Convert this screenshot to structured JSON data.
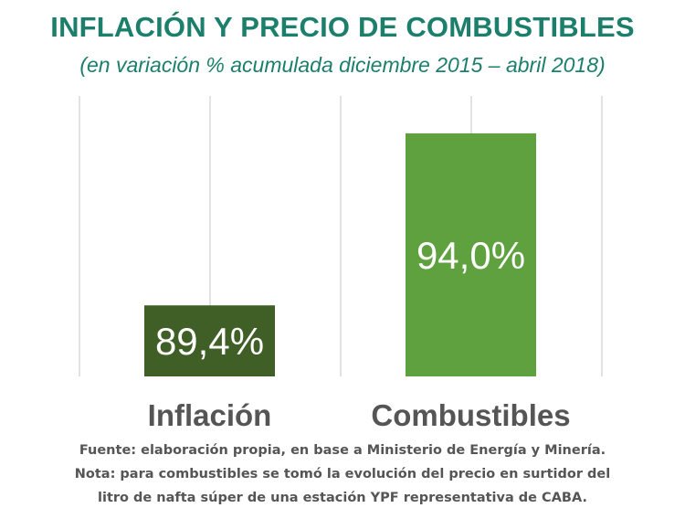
{
  "chart_data": {
    "type": "bar",
    "title": "INFLACIÓN Y PRECIO DE COMBUSTIBLES",
    "subtitle": "(en variación % acumulada diciembre 2015 – abril 2018)",
    "categories": [
      "Inflación",
      "Combustibles"
    ],
    "values": [
      89.4,
      94.0
    ],
    "data_labels": [
      "89,4%",
      "94,0%"
    ],
    "colors": [
      "#3f5f27",
      "#5fa13f"
    ],
    "label_color": "#ffffff",
    "category_label_color": "#555555",
    "gridline_color": "#e2e2e2",
    "ylim": [
      87.5,
      95
    ],
    "grid": true,
    "legend": "none",
    "xlabel": "",
    "ylabel": ""
  },
  "notes": [
    "Fuente: elaboración propia, en base a Ministerio de Energía y Minería.",
    "Nota: para combustibles se tomó la evolución del precio en surtidor del",
    "litro de nafta súper de una estación YPF representativa de CABA."
  ]
}
